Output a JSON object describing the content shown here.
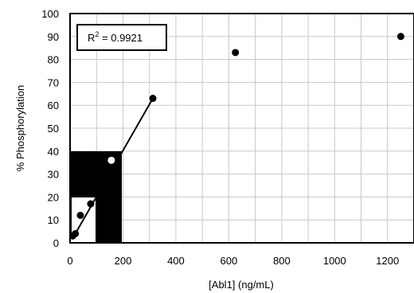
{
  "chart_data": {
    "type": "scatter",
    "title": "",
    "xlabel": "[Abl1] (ng/mL)",
    "ylabel": "% Phosphorylation",
    "xlim": [
      0,
      1300
    ],
    "ylim": [
      0,
      100
    ],
    "x_ticks": [
      0,
      200,
      400,
      600,
      800,
      1000,
      1200
    ],
    "y_ticks": [
      0,
      10,
      20,
      30,
      40,
      50,
      60,
      70,
      80,
      90,
      100
    ],
    "x_grid_step": 100,
    "grid": true,
    "legend": "none",
    "r2_label": "R",
    "r2_sup": "2",
    "r2_value": " = 0.9921",
    "points": [
      {
        "x": 0,
        "y": 0
      },
      {
        "x": 5,
        "y": 2
      },
      {
        "x": 10,
        "y": 3
      },
      {
        "x": 20,
        "y": 4
      },
      {
        "x": 39,
        "y": 12
      },
      {
        "x": 78,
        "y": 17
      },
      {
        "x": 156,
        "y": 36
      },
      {
        "x": 313,
        "y": 63
      },
      {
        "x": 625,
        "y": 83
      },
      {
        "x": 1250,
        "y": 90
      }
    ],
    "trendline": {
      "x": [
        0,
        313
      ],
      "y": [
        0,
        63
      ]
    },
    "colors": {
      "markers": "#000000",
      "line": "#000000",
      "grid": "#c8c8c8"
    }
  }
}
